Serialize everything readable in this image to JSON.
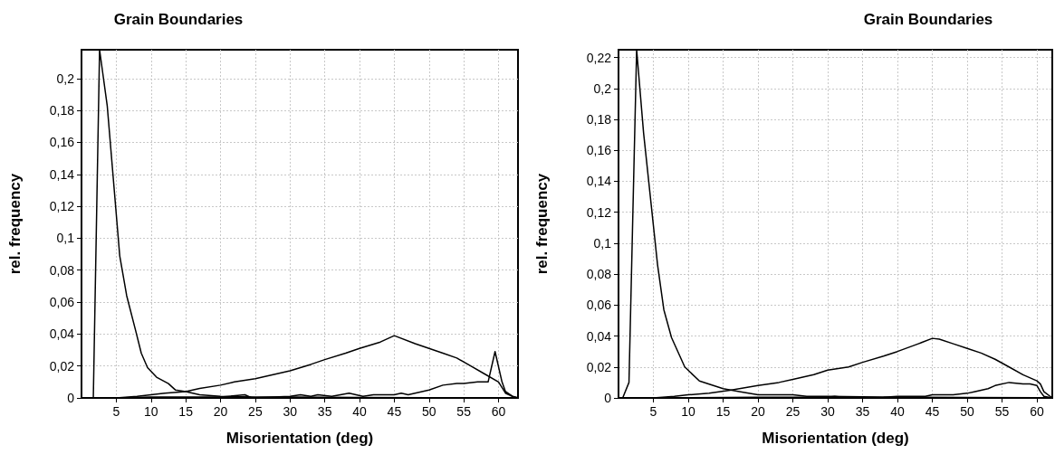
{
  "chart_data": [
    {
      "type": "line",
      "title": "Grain Boundaries",
      "xlabel": "Misorientation (deg)",
      "ylabel": "rel. frequency",
      "xlim": [
        0,
        62.8
      ],
      "ylim": [
        0,
        0.218
      ],
      "xticks": [
        5,
        10,
        15,
        20,
        25,
        30,
        35,
        40,
        45,
        50,
        55,
        60
      ],
      "yticks": [
        0,
        {
          "value": 0.02,
          "label": "0,02"
        },
        {
          "value": 0.04,
          "label": "0,04"
        },
        {
          "value": 0.06,
          "label": "0,06"
        },
        {
          "value": 0.08,
          "label": "0,08"
        },
        {
          "value": 0.1,
          "label": "0,1"
        },
        {
          "value": 0.12,
          "label": "0,12"
        },
        {
          "value": 0.14,
          "label": "0,14"
        },
        {
          "value": 0.16,
          "label": "0,16"
        },
        {
          "value": 0.18,
          "label": "0,18"
        },
        {
          "value": 0.2,
          "label": "0,2"
        }
      ],
      "grid": true,
      "marker": "none",
      "line_style": "solid",
      "series": [
        {
          "color": "#000000",
          "x": [
            0,
            1.7,
            2.6,
            3.7,
            5.5,
            6.5,
            7.8,
            8.6,
            9.5,
            10.8,
            12.5,
            13.5,
            15,
            17,
            20,
            25,
            30,
            40,
            50,
            60,
            62
          ],
          "values": [
            0,
            0,
            0.218,
            0.183,
            0.089,
            0.064,
            0.042,
            0.028,
            0.019,
            0.013,
            0.009,
            0.005,
            0.004,
            0.002,
            0.001,
            0.0005,
            0.0005,
            0.0003,
            0.0002,
            0.0001,
            0
          ]
        },
        {
          "color": "#000000",
          "x": [
            5,
            8,
            10,
            12,
            15,
            17,
            20,
            22,
            25,
            27,
            30,
            33,
            35,
            38,
            40,
            43,
            45,
            48,
            50,
            52,
            54,
            56,
            58,
            60,
            61,
            62,
            62.8
          ],
          "values": [
            0,
            0.001,
            0.002,
            0.003,
            0.004,
            0.006,
            0.008,
            0.01,
            0.012,
            0.014,
            0.017,
            0.021,
            0.024,
            0.028,
            0.031,
            0.035,
            0.039,
            0.034,
            0.031,
            0.028,
            0.025,
            0.02,
            0.015,
            0.01,
            0.003,
            0.001,
            0
          ]
        },
        {
          "color": "#000000",
          "x": [
            5,
            10,
            15,
            20,
            23.5,
            24.5,
            30,
            31.5,
            33,
            34,
            36,
            38.5,
            40.5,
            42,
            45,
            46,
            47,
            50,
            52,
            54,
            55,
            57,
            58.5,
            59.5,
            60.5,
            61,
            62,
            62.8
          ],
          "values": [
            0,
            0.0005,
            0.0005,
            0.0005,
            0.002,
            0,
            0.001,
            0.002,
            0.001,
            0.002,
            0.001,
            0.003,
            0.001,
            0.002,
            0.002,
            0.003,
            0.002,
            0.005,
            0.008,
            0.009,
            0.009,
            0.01,
            0.01,
            0.029,
            0.01,
            0.004,
            0.001,
            0
          ]
        }
      ]
    },
    {
      "type": "line",
      "title": "Grain Boundaries",
      "xlabel": "Misorientation (deg)",
      "ylabel": "rel. frequency",
      "xlim": [
        0,
        62.2
      ],
      "ylim": [
        0,
        0.225
      ],
      "xticks": [
        5,
        10,
        15,
        20,
        25,
        30,
        35,
        40,
        45,
        50,
        55,
        60
      ],
      "yticks": [
        0,
        {
          "value": 0.02,
          "label": "0,02"
        },
        {
          "value": 0.04,
          "label": "0,04"
        },
        {
          "value": 0.06,
          "label": "0,06"
        },
        {
          "value": 0.08,
          "label": "0,08"
        },
        {
          "value": 0.1,
          "label": "0,1"
        },
        {
          "value": 0.12,
          "label": "0,12"
        },
        {
          "value": 0.14,
          "label": "0,14"
        },
        {
          "value": 0.16,
          "label": "0,16"
        },
        {
          "value": 0.18,
          "label": "0,18"
        },
        {
          "value": 0.2,
          "label": "0,2"
        },
        {
          "value": 0.22,
          "label": "0,22"
        }
      ],
      "grid": true,
      "marker": "none",
      "line_style": "solid",
      "series": [
        {
          "color": "#000000",
          "x": [
            0,
            0.6,
            1.5,
            2.6,
            3.6,
            5.6,
            6.5,
            7.6,
            9.5,
            11.6,
            15,
            17.5,
            20,
            25,
            27,
            30,
            40,
            50,
            60,
            62.2
          ],
          "values": [
            0,
            0,
            0.01,
            0.225,
            0.171,
            0.086,
            0.057,
            0.039,
            0.02,
            0.011,
            0.006,
            0.004,
            0.002,
            0.002,
            0.001,
            0.001,
            0.0005,
            0.0003,
            0.0002,
            0
          ]
        },
        {
          "color": "#000000",
          "x": [
            5,
            8,
            10,
            13,
            16,
            20,
            23,
            25,
            28,
            30,
            33,
            35,
            38,
            40,
            43,
            45,
            46,
            48,
            50,
            52,
            54,
            56,
            58,
            60,
            60.5,
            61,
            62.2
          ],
          "values": [
            0,
            0.001,
            0.002,
            0.003,
            0.005,
            0.008,
            0.01,
            0.012,
            0.015,
            0.018,
            0.02,
            0.023,
            0.027,
            0.03,
            0.035,
            0.0385,
            0.038,
            0.035,
            0.032,
            0.029,
            0.025,
            0.02,
            0.015,
            0.011,
            0.009,
            0.004,
            0
          ]
        },
        {
          "color": "#000000",
          "x": [
            5,
            20,
            30,
            31,
            33,
            38,
            40,
            44,
            45,
            48,
            50,
            51,
            52,
            53,
            54,
            56,
            58,
            59,
            60,
            60.5,
            61,
            62.2
          ],
          "values": [
            0,
            0.0005,
            0.0005,
            0.001,
            0,
            0.0005,
            0.001,
            0.001,
            0.002,
            0.002,
            0.003,
            0.004,
            0.005,
            0.006,
            0.008,
            0.01,
            0.009,
            0.009,
            0.008,
            0.004,
            0.001,
            0
          ]
        }
      ]
    }
  ]
}
